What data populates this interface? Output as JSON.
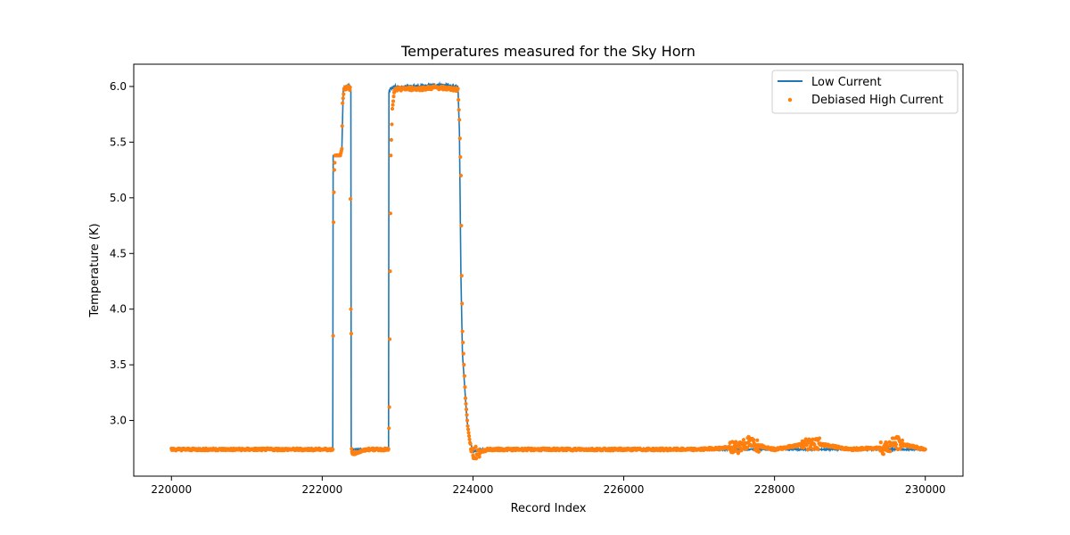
{
  "chart_data": {
    "type": "line",
    "title": "Temperatures measured for the Sky Horn",
    "xlabel": "Record Index",
    "ylabel": "Temperature (K)",
    "xlim": [
      219500,
      230500
    ],
    "ylim": [
      2.5,
      6.2
    ],
    "xticks": [
      220000,
      222000,
      224000,
      226000,
      228000,
      230000
    ],
    "yticks": [
      3.0,
      3.5,
      4.0,
      4.5,
      5.0,
      5.5,
      6.0
    ],
    "grid": false,
    "legend_position": "top-right",
    "series": [
      {
        "name": "Low Current",
        "style": "line",
        "color": "#1f77b4",
        "points": [
          [
            220000,
            2.74
          ],
          [
            222140,
            2.74
          ],
          [
            222145,
            5.38
          ],
          [
            222250,
            5.38
          ],
          [
            222260,
            5.42
          ],
          [
            222280,
            6.0
          ],
          [
            222360,
            6.0
          ],
          [
            222380,
            5.98
          ],
          [
            222385,
            2.74
          ],
          [
            222880,
            2.74
          ],
          [
            222885,
            5.95
          ],
          [
            222920,
            5.99
          ],
          [
            223300,
            6.0
          ],
          [
            223500,
            6.01
          ],
          [
            223800,
            6.0
          ],
          [
            223820,
            5.6
          ],
          [
            223840,
            4.3
          ],
          [
            223860,
            3.6
          ],
          [
            223890,
            3.3
          ],
          [
            223920,
            3.0
          ],
          [
            223960,
            2.82
          ],
          [
            224000,
            2.72
          ],
          [
            224100,
            2.74
          ],
          [
            226000,
            2.74
          ],
          [
            228000,
            2.74
          ],
          [
            230000,
            2.74
          ]
        ]
      },
      {
        "name": "Debiased High Current",
        "style": "scatter",
        "color": "#ff7f0e",
        "points": [
          [
            220000,
            2.74
          ],
          [
            220500,
            2.74
          ],
          [
            221000,
            2.74
          ],
          [
            221500,
            2.74
          ],
          [
            222000,
            2.74
          ],
          [
            222140,
            2.74
          ],
          [
            222150,
            4.78
          ],
          [
            222155,
            5.05
          ],
          [
            222160,
            5.25
          ],
          [
            222170,
            5.38
          ],
          [
            222200,
            5.38
          ],
          [
            222240,
            5.38
          ],
          [
            222260,
            5.44
          ],
          [
            222270,
            5.85
          ],
          [
            222290,
            5.98
          ],
          [
            222330,
            5.99
          ],
          [
            222370,
            5.98
          ],
          [
            222380,
            4.0
          ],
          [
            222385,
            3.78
          ],
          [
            222390,
            2.74
          ],
          [
            222400,
            2.7
          ],
          [
            222600,
            2.74
          ],
          [
            222880,
            2.74
          ],
          [
            222890,
            3.12
          ],
          [
            222900,
            4.34
          ],
          [
            222910,
            5.38
          ],
          [
            222930,
            5.8
          ],
          [
            222960,
            5.97
          ],
          [
            223100,
            5.98
          ],
          [
            223300,
            5.98
          ],
          [
            223500,
            5.99
          ],
          [
            223700,
            5.98
          ],
          [
            223800,
            5.97
          ],
          [
            223820,
            5.7
          ],
          [
            223840,
            5.2
          ],
          [
            223850,
            4.3
          ],
          [
            223860,
            3.8
          ],
          [
            223880,
            3.5
          ],
          [
            223900,
            3.2
          ],
          [
            223930,
            2.95
          ],
          [
            223960,
            2.8
          ],
          [
            224000,
            2.7
          ],
          [
            224200,
            2.74
          ],
          [
            225000,
            2.74
          ],
          [
            226000,
            2.74
          ],
          [
            227000,
            2.74
          ],
          [
            227500,
            2.76
          ],
          [
            227650,
            2.8
          ],
          [
            228000,
            2.74
          ],
          [
            228500,
            2.8
          ],
          [
            229000,
            2.74
          ],
          [
            229500,
            2.76
          ],
          [
            229600,
            2.8
          ],
          [
            230000,
            2.74
          ]
        ]
      }
    ]
  }
}
